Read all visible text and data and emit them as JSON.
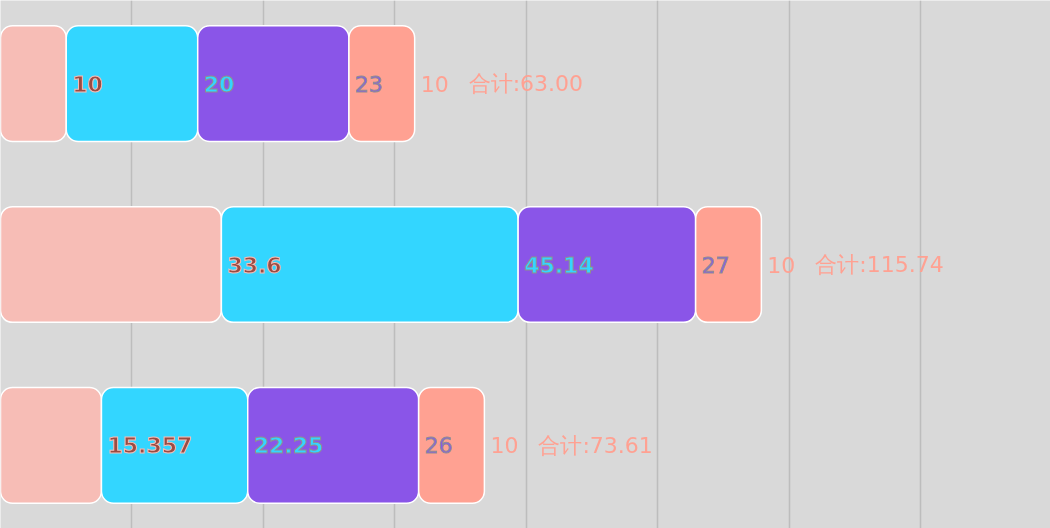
{
  "chart_data": {
    "type": "bar",
    "orientation": "horizontal",
    "stacked": true,
    "categories": [
      null,
      null,
      null
    ],
    "series": [
      {
        "color": "#f7bdb6",
        "values": [
          10,
          33.6,
          15.357
        ]
      },
      {
        "color": "#33d6ff",
        "values": [
          20,
          45.14,
          22.25
        ]
      },
      {
        "color": "#8a55e8",
        "values": [
          23,
          27,
          26
        ]
      },
      {
        "color": "#ffa192",
        "values": [
          10,
          10,
          10
        ]
      }
    ],
    "totals": [
      "合计:63.00",
      "合计:115.74",
      "合计:73.61"
    ],
    "data_labels": true,
    "grid": "x",
    "tick_labels": false
  }
}
